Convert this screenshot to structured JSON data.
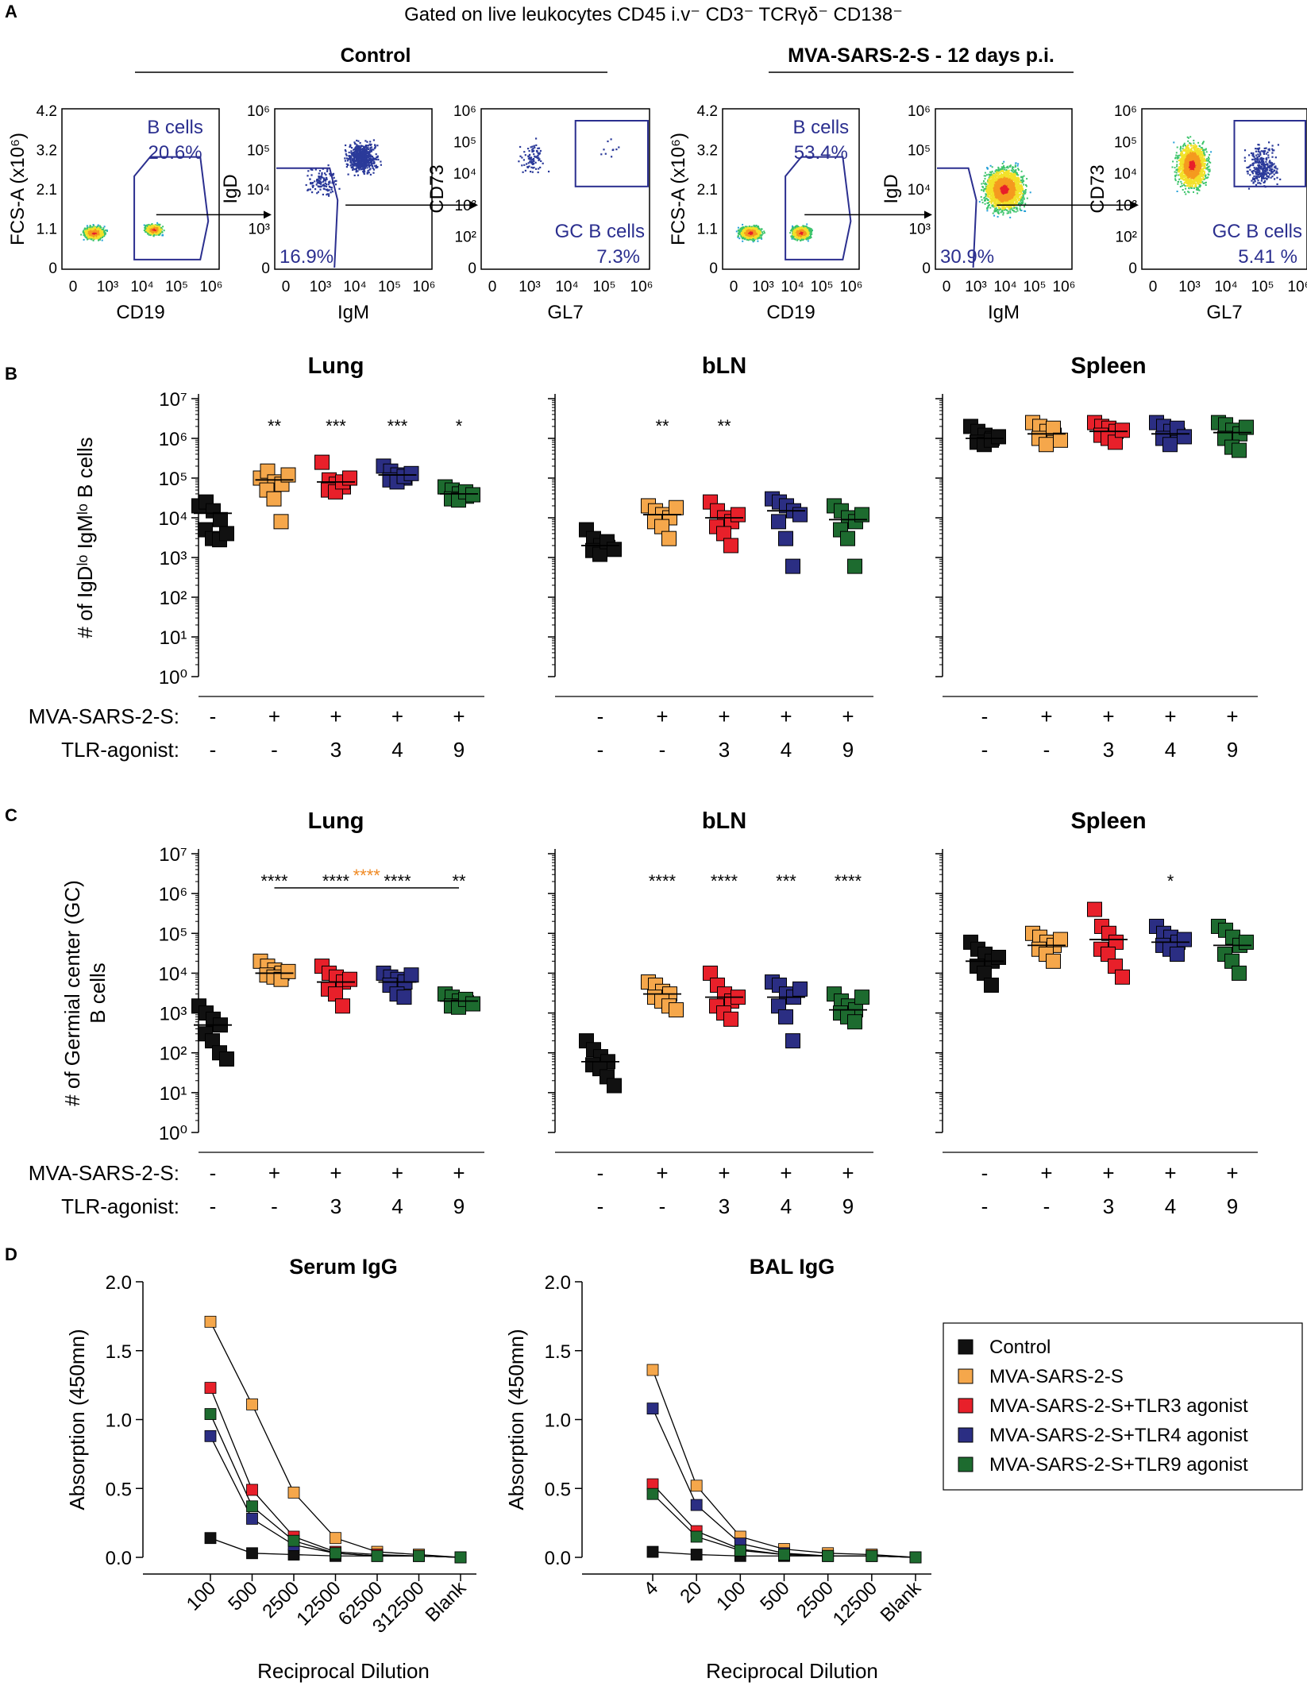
{
  "colors": {
    "control": "#111111",
    "mva": "#f5a74b",
    "tlr3": "#e8202a",
    "tlr4": "#2b2e83",
    "tlr9": "#1d6b2f",
    "facs_gate": "#2b2f8f",
    "orange_sig": "#f08a24"
  },
  "panel_a": {
    "letter": "A",
    "header": "Gated on live leukocytes CD45 i.v⁻ CD3⁻ TCRγδ⁻ CD138⁻",
    "groups": [
      "Control",
      "MVA-SARS-2-S - 12 days p.i."
    ],
    "plots": [
      {
        "group": "Control",
        "xlabel": "CD19",
        "ylabel": "FCS-A (x10⁶)",
        "yticks": [
          "4.2",
          "3.2",
          "2.1",
          "1.1",
          "0"
        ],
        "xticks": [
          "0",
          "10³",
          "10⁴",
          "10⁵",
          "10⁶"
        ],
        "gate_name": "B cells",
        "gate_pct": "20.6%"
      },
      {
        "group": "Control",
        "xlabel": "IgM",
        "ylabel": "IgD",
        "yticks": [
          "10⁶",
          "10⁵",
          "10⁴",
          "10³",
          "0"
        ],
        "xticks": [
          "0",
          "10³",
          "10⁴",
          "10⁵",
          "10⁶"
        ],
        "gate_name": "",
        "gate_pct": "16.9%"
      },
      {
        "group": "Control",
        "xlabel": "GL7",
        "ylabel": "CD73",
        "yticks": [
          "10⁶",
          "10⁵",
          "10⁴",
          "10³",
          "10²",
          "0"
        ],
        "xticks": [
          "0",
          "10³",
          "10⁴",
          "10⁵",
          "10⁶"
        ],
        "gate_name": "GC B cells",
        "gate_pct": "7.3%"
      },
      {
        "group": "MVA-SARS-2-S",
        "xlabel": "CD19",
        "ylabel": "FCS-A (x10⁶)",
        "yticks": [
          "4.2",
          "3.2",
          "2.1",
          "1.1",
          "0"
        ],
        "xticks": [
          "0",
          "10³",
          "10⁴",
          "10⁵",
          "10⁶"
        ],
        "gate_name": "B cells",
        "gate_pct": "53.4%"
      },
      {
        "group": "MVA-SARS-2-S",
        "xlabel": "IgM",
        "ylabel": "IgD",
        "yticks": [
          "10⁶",
          "10⁵",
          "10⁴",
          "10³",
          "0"
        ],
        "xticks": [
          "0",
          "10³",
          "10⁴",
          "10⁵",
          "10⁶"
        ],
        "gate_name": "",
        "gate_pct": "30.9%"
      },
      {
        "group": "MVA-SARS-2-S",
        "xlabel": "GL7",
        "ylabel": "CD73",
        "yticks": [
          "10⁶",
          "10⁵",
          "10⁴",
          "10³",
          "10²",
          "0"
        ],
        "xticks": [
          "0",
          "10³",
          "10⁴",
          "10⁵",
          "10⁶"
        ],
        "gate_name": "GC B cells",
        "gate_pct": "5.41 %"
      }
    ]
  },
  "panel_b": {
    "letter": "B",
    "ylabel": "# of IgDˡᵒ IgMˡᵒ B cells"
  },
  "panel_c": {
    "letter": "C",
    "ylabel_line1": "# of Germial center (GC)",
    "ylabel_line2": "B cells",
    "orange_sig": "****"
  },
  "panel_d": {
    "letter": "D"
  },
  "row_labels": {
    "mva": "MVA-SARS-2-S:",
    "tlr": "TLR-agonist:"
  },
  "group_labels": {
    "mva": [
      "-",
      "+",
      "+",
      "+",
      "+"
    ],
    "tlr": [
      "-",
      "-",
      "3",
      "4",
      "9"
    ]
  },
  "legend": {
    "items": [
      "Control",
      "MVA-SARS-2-S",
      "MVA-SARS-2-S+TLR3 agonist",
      "MVA-SARS-2-S+TLR4 agonist",
      "MVA-SARS-2-S+TLR9 agonist"
    ]
  },
  "chart_data": [
    {
      "id": "B-lung",
      "type": "scatter",
      "title": "Lung",
      "scale": "log10",
      "ylim": [
        1,
        10000000
      ],
      "yticks": [
        "10⁰",
        "10¹",
        "10²",
        "10³",
        "10⁴",
        "10⁵",
        "10⁶",
        "10⁷"
      ],
      "ylabel": "# of IgDˡᵒ IgMˡᵒ B cells",
      "groups": [
        "Control",
        "MVA-SARS-2-S",
        "MVA-SARS-2-S+TLR3 agonist",
        "MVA-SARS-2-S+TLR4 agonist",
        "MVA-SARS-2-S+TLR9 agonist"
      ],
      "series": [
        {
          "name": "Control",
          "values": [
            20000,
            25000,
            15000,
            9000,
            5000,
            3000,
            2800,
            4000
          ],
          "mean": 13000
        },
        {
          "name": "MVA-SARS-2-S",
          "values": [
            100000,
            150000,
            80000,
            70000,
            50000,
            30000,
            8000,
            120000
          ],
          "mean": 90000
        },
        {
          "name": "MVA-SARS-2-S+TLR3 agonist",
          "values": [
            250000,
            90000,
            70000,
            60000,
            50000,
            45000,
            80000,
            100000
          ],
          "mean": 80000
        },
        {
          "name": "MVA-SARS-2-S+TLR4 agonist",
          "values": [
            200000,
            150000,
            120000,
            100000,
            90000,
            80000,
            110000,
            130000
          ],
          "mean": 120000
        },
        {
          "name": "MVA-SARS-2-S+TLR9 agonist",
          "values": [
            60000,
            50000,
            40000,
            35000,
            30000,
            28000,
            45000,
            38000
          ],
          "mean": 40000
        }
      ],
      "significance": [
        "",
        "**",
        "***",
        "***",
        "*"
      ]
    },
    {
      "id": "B-bln",
      "type": "scatter",
      "title": "bLN",
      "scale": "log10",
      "ylim": [
        1,
        10000000
      ],
      "series": [
        {
          "name": "Control",
          "values": [
            5000,
            3000,
            2000,
            1800,
            1500,
            1200,
            2500,
            1600
          ],
          "mean": 2000
        },
        {
          "name": "MVA-SARS-2-S",
          "values": [
            20000,
            15000,
            12000,
            10000,
            8000,
            6000,
            3000,
            18000
          ],
          "mean": 12000
        },
        {
          "name": "MVA-SARS-2-S+TLR3 agonist",
          "values": [
            25000,
            15000,
            10000,
            8000,
            6000,
            4000,
            2000,
            12000
          ],
          "mean": 10000
        },
        {
          "name": "MVA-SARS-2-S+TLR4 agonist",
          "values": [
            30000,
            25000,
            20000,
            15000,
            8000,
            3000,
            600,
            12000
          ],
          "mean": 15000
        },
        {
          "name": "MVA-SARS-2-S+TLR9 agonist",
          "values": [
            20000,
            15000,
            10000,
            8000,
            5000,
            3000,
            600,
            12000
          ],
          "mean": 9000
        }
      ],
      "significance": [
        "",
        "**",
        "**",
        "",
        ""
      ]
    },
    {
      "id": "B-spleen",
      "type": "scatter",
      "title": "Spleen",
      "scale": "log10",
      "ylim": [
        1,
        10000000
      ],
      "series": [
        {
          "name": "Control",
          "values": [
            2000000,
            1500000,
            1200000,
            1000000,
            800000,
            700000,
            900000,
            1100000
          ],
          "mean": 1000000
        },
        {
          "name": "MVA-SARS-2-S",
          "values": [
            2500000,
            2000000,
            1500000,
            1200000,
            1000000,
            700000,
            1800000,
            900000
          ],
          "mean": 1300000
        },
        {
          "name": "MVA-SARS-2-S+TLR3 agonist",
          "values": [
            2500000,
            2000000,
            1800000,
            1500000,
            1200000,
            1000000,
            800000,
            1600000
          ],
          "mean": 1500000
        },
        {
          "name": "MVA-SARS-2-S+TLR4 agonist",
          "values": [
            2500000,
            2000000,
            1500000,
            1200000,
            1000000,
            700000,
            1800000,
            1100000
          ],
          "mean": 1300000
        },
        {
          "name": "MVA-SARS-2-S+TLR9 agonist",
          "values": [
            2500000,
            2200000,
            1600000,
            1300000,
            1000000,
            600000,
            500000,
            1900000
          ],
          "mean": 1400000
        }
      ],
      "significance": [
        "",
        "",
        "",
        "",
        ""
      ]
    },
    {
      "id": "C-lung",
      "type": "scatter",
      "title": "Lung",
      "scale": "log10",
      "ylim": [
        1,
        10000000
      ],
      "yticks": [
        "10⁰",
        "10¹",
        "10²",
        "10³",
        "10⁴",
        "10⁵",
        "10⁶",
        "10⁷"
      ],
      "ylabel": "# of Germial center (GC) B cells",
      "series": [
        {
          "name": "Control",
          "values": [
            1500,
            1000,
            700,
            500,
            300,
            200,
            100,
            70
          ],
          "mean": 500
        },
        {
          "name": "MVA-SARS-2-S",
          "values": [
            20000,
            15000,
            12000,
            10000,
            9000,
            8000,
            7000,
            11000
          ],
          "mean": 10000
        },
        {
          "name": "MVA-SARS-2-S+TLR3 agonist",
          "values": [
            15000,
            10000,
            8000,
            6000,
            4000,
            3000,
            1500,
            7000
          ],
          "mean": 6000
        },
        {
          "name": "MVA-SARS-2-S+TLR4 agonist",
          "values": [
            10000,
            8000,
            7000,
            6000,
            5000,
            3000,
            2500,
            9000
          ],
          "mean": 6000
        },
        {
          "name": "MVA-SARS-2-S+TLR9 agonist",
          "values": [
            3000,
            2500,
            2000,
            1800,
            1500,
            1400,
            2200,
            1700
          ],
          "mean": 2000
        }
      ],
      "significance": [
        "",
        "****",
        "****",
        "****",
        "**"
      ],
      "bracket": {
        "from": "MVA-SARS-2-S",
        "to": "MVA-SARS-2-S+TLR9 agonist",
        "label": "****"
      }
    },
    {
      "id": "C-bln",
      "type": "scatter",
      "title": "bLN",
      "scale": "log10",
      "ylim": [
        1,
        10000000
      ],
      "series": [
        {
          "name": "Control",
          "values": [
            200,
            120,
            80,
            60,
            50,
            40,
            25,
            15
          ],
          "mean": 60
        },
        {
          "name": "MVA-SARS-2-S",
          "values": [
            6000,
            5000,
            3500,
            3000,
            2500,
            2000,
            1500,
            1200
          ],
          "mean": 3000
        },
        {
          "name": "MVA-SARS-2-S+TLR3 agonist",
          "values": [
            10000,
            5000,
            3000,
            2000,
            1500,
            1000,
            700,
            2500
          ],
          "mean": 2500
        },
        {
          "name": "MVA-SARS-2-S+TLR4 agonist",
          "values": [
            6000,
            5000,
            3000,
            2500,
            1500,
            800,
            200,
            4000
          ],
          "mean": 2500
        },
        {
          "name": "MVA-SARS-2-S+TLR9 agonist",
          "values": [
            3000,
            2000,
            1500,
            1200,
            1000,
            800,
            600,
            2500
          ],
          "mean": 1200
        }
      ],
      "significance": [
        "",
        "****",
        "****",
        "***",
        "****"
      ]
    },
    {
      "id": "C-spleen",
      "type": "scatter",
      "title": "Spleen",
      "scale": "log10",
      "ylim": [
        1,
        10000000
      ],
      "series": [
        {
          "name": "Control",
          "values": [
            60000,
            40000,
            30000,
            20000,
            15000,
            10000,
            5000,
            25000
          ],
          "mean": 20000
        },
        {
          "name": "MVA-SARS-2-S",
          "values": [
            100000,
            80000,
            60000,
            50000,
            40000,
            30000,
            20000,
            70000
          ],
          "mean": 50000
        },
        {
          "name": "MVA-SARS-2-S+TLR3 agonist",
          "values": [
            400000,
            150000,
            100000,
            60000,
            40000,
            30000,
            15000,
            8000
          ],
          "mean": 70000
        },
        {
          "name": "MVA-SARS-2-S+TLR4 agonist",
          "values": [
            150000,
            100000,
            80000,
            60000,
            50000,
            40000,
            30000,
            70000
          ],
          "mean": 60000
        },
        {
          "name": "MVA-SARS-2-S+TLR9 agonist",
          "values": [
            150000,
            120000,
            80000,
            50000,
            30000,
            20000,
            10000,
            60000
          ],
          "mean": 50000
        }
      ],
      "significance": [
        "",
        "",
        "",
        "*",
        ""
      ]
    },
    {
      "id": "D-serum",
      "type": "line",
      "title": "Serum IgG",
      "ylabel": "Absorption (450mn)",
      "xlabel": "Reciprocal  Dilution",
      "categories": [
        "100",
        "500",
        "2500",
        "12500",
        "62500",
        "312500",
        "Blank"
      ],
      "ylim": [
        0,
        2.0
      ],
      "yticks": [
        "0.0",
        "0.5",
        "1.0",
        "1.5",
        "2.0"
      ],
      "series": [
        {
          "name": "Control",
          "values": [
            0.14,
            0.03,
            0.02,
            0.01,
            0.01,
            0.01,
            0.0
          ]
        },
        {
          "name": "MVA-SARS-2-S",
          "values": [
            1.71,
            1.11,
            0.47,
            0.14,
            0.04,
            0.02,
            0.0
          ]
        },
        {
          "name": "MVA-SARS-2-S+TLR3 agonist",
          "values": [
            1.23,
            0.49,
            0.15,
            0.04,
            0.02,
            0.01,
            0.0
          ]
        },
        {
          "name": "MVA-SARS-2-S+TLR4 agonist",
          "values": [
            0.88,
            0.28,
            0.09,
            0.03,
            0.01,
            0.01,
            0.0
          ]
        },
        {
          "name": "MVA-SARS-2-S+TLR9 agonist",
          "values": [
            1.04,
            0.37,
            0.12,
            0.03,
            0.01,
            0.01,
            0.0
          ]
        }
      ]
    },
    {
      "id": "D-bal",
      "type": "line",
      "title": "BAL IgG",
      "ylabel": "Absorption (450mn)",
      "xlabel": "Reciprocal  Dilution",
      "categories": [
        "4",
        "20",
        "100",
        "500",
        "2500",
        "12500",
        "Blank"
      ],
      "ylim": [
        0,
        2.0
      ],
      "yticks": [
        "0.0",
        "0.5",
        "1.0",
        "1.5",
        "2.0"
      ],
      "series": [
        {
          "name": "Control",
          "values": [
            0.04,
            0.02,
            0.01,
            0.01,
            0.01,
            0.01,
            0.0
          ]
        },
        {
          "name": "MVA-SARS-2-S",
          "values": [
            1.36,
            0.52,
            0.15,
            0.06,
            0.03,
            0.02,
            0.0
          ]
        },
        {
          "name": "MVA-SARS-2-S+TLR3 agonist",
          "values": [
            0.53,
            0.19,
            0.06,
            0.02,
            0.01,
            0.01,
            0.0
          ]
        },
        {
          "name": "MVA-SARS-2-S+TLR4 agonist",
          "values": [
            1.08,
            0.38,
            0.1,
            0.03,
            0.01,
            0.01,
            0.0
          ]
        },
        {
          "name": "MVA-SARS-2-S+TLR9 agonist",
          "values": [
            0.46,
            0.15,
            0.05,
            0.02,
            0.01,
            0.01,
            0.0
          ]
        }
      ]
    }
  ]
}
